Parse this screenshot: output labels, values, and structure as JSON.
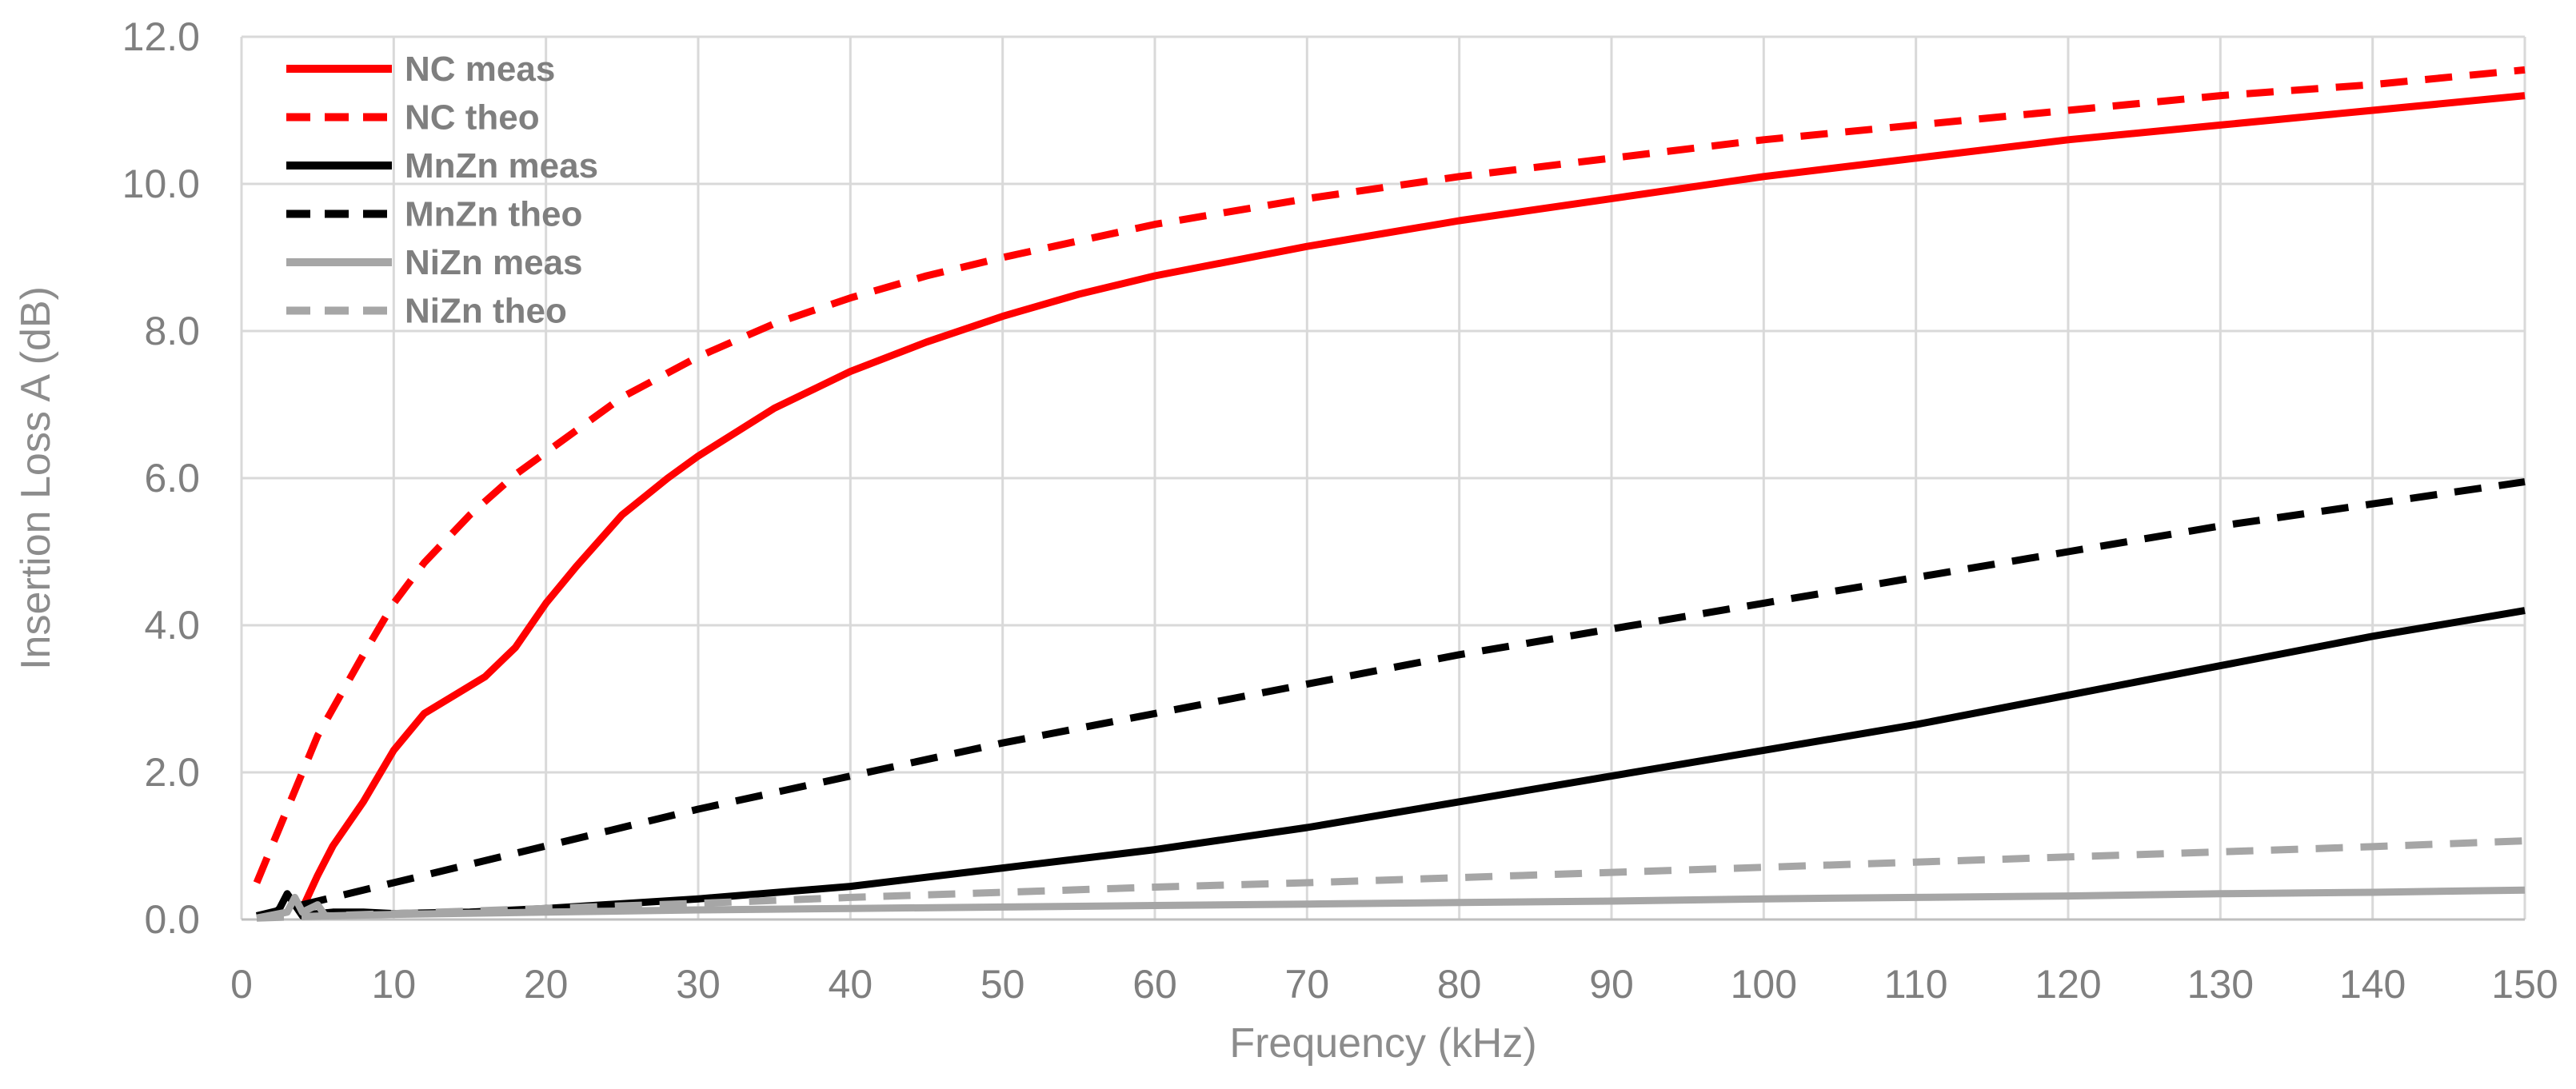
{
  "chart_data": {
    "type": "line",
    "title": "",
    "xlabel": "Frequency (kHz)",
    "ylabel": "Insertion Loss A (dB)",
    "xlim": [
      0,
      150
    ],
    "ylim": [
      0,
      12
    ],
    "grid": true,
    "legend_position": "top-left",
    "x_ticks": [
      0,
      10,
      20,
      30,
      40,
      50,
      60,
      70,
      80,
      90,
      100,
      110,
      120,
      130,
      140,
      150
    ],
    "x_tick_labels": [
      "0",
      "10",
      "20",
      "30",
      "40",
      "50",
      "60",
      "70",
      "80",
      "90",
      "100",
      "110",
      "120",
      "130",
      "140",
      "150"
    ],
    "y_ticks": [
      0,
      2,
      4,
      6,
      8,
      10,
      12
    ],
    "y_tick_labels": [
      "0.0",
      "2.0",
      "4.0",
      "6.0",
      "8.0",
      "10.0",
      "12.0"
    ],
    "series": [
      {
        "name": "NC meas",
        "color": "#ff0000",
        "dash": "solid",
        "x": [
          4,
          5,
          6,
          8,
          10,
          12,
          14,
          16,
          18,
          20,
          22,
          25,
          28,
          30,
          35,
          40,
          45,
          50,
          55,
          60,
          70,
          80,
          90,
          100,
          110,
          120,
          130,
          140,
          150
        ],
        "y": [
          0.15,
          0.6,
          1.0,
          1.6,
          2.3,
          2.8,
          3.05,
          3.3,
          3.7,
          4.3,
          4.8,
          5.5,
          6.0,
          6.3,
          6.95,
          7.45,
          7.85,
          8.2,
          8.5,
          8.75,
          9.15,
          9.5,
          9.8,
          10.1,
          10.35,
          10.6,
          10.8,
          11.0,
          11.2
        ]
      },
      {
        "name": "NC theo",
        "color": "#ff0000",
        "dash": "dashed",
        "x": [
          1,
          3,
          5,
          8,
          10,
          12,
          15,
          18,
          20,
          25,
          30,
          35,
          40,
          45,
          50,
          60,
          70,
          80,
          90,
          100,
          110,
          120,
          130,
          140,
          150
        ],
        "y": [
          0.5,
          1.5,
          2.5,
          3.6,
          4.3,
          4.85,
          5.5,
          6.05,
          6.35,
          7.1,
          7.65,
          8.1,
          8.45,
          8.75,
          9.0,
          9.45,
          9.8,
          10.1,
          10.35,
          10.6,
          10.8,
          11.0,
          11.2,
          11.35,
          11.55
        ]
      },
      {
        "name": "MnZn meas",
        "color": "#000000",
        "dash": "solid",
        "x": [
          1,
          2,
          2.5,
          3,
          3.5,
          4,
          5,
          6,
          8,
          10,
          15,
          20,
          30,
          40,
          50,
          60,
          70,
          80,
          90,
          100,
          110,
          120,
          130,
          140,
          150
        ],
        "y": [
          0.03,
          0.05,
          0.15,
          0.35,
          0.2,
          0.05,
          0.08,
          0.1,
          0.1,
          0.08,
          0.1,
          0.15,
          0.28,
          0.45,
          0.7,
          0.95,
          1.25,
          1.6,
          1.95,
          2.3,
          2.65,
          3.05,
          3.45,
          3.85,
          4.2
        ]
      },
      {
        "name": "MnZn theo",
        "color": "#000000",
        "dash": "dashed",
        "x": [
          1,
          5,
          10,
          20,
          30,
          40,
          50,
          60,
          70,
          80,
          90,
          100,
          110,
          120,
          130,
          140,
          150
        ],
        "y": [
          0.05,
          0.25,
          0.5,
          1.0,
          1.5,
          1.95,
          2.4,
          2.8,
          3.2,
          3.6,
          3.95,
          4.3,
          4.65,
          5.0,
          5.35,
          5.65,
          5.95
        ]
      },
      {
        "name": "NiZn meas",
        "color": "#a6a6a6",
        "dash": "solid",
        "x": [
          1,
          3,
          3.5,
          4,
          5,
          5.5,
          6,
          8,
          10,
          20,
          30,
          40,
          50,
          60,
          70,
          80,
          90,
          100,
          110,
          120,
          130,
          140,
          150
        ],
        "y": [
          0.02,
          0.1,
          0.3,
          0.1,
          0.2,
          0.05,
          0.05,
          0.06,
          0.07,
          0.1,
          0.13,
          0.15,
          0.17,
          0.19,
          0.21,
          0.23,
          0.25,
          0.28,
          0.3,
          0.32,
          0.35,
          0.37,
          0.4
        ]
      },
      {
        "name": "NiZn theo",
        "color": "#a6a6a6",
        "dash": "dashed",
        "x": [
          1,
          10,
          20,
          30,
          40,
          50,
          60,
          70,
          80,
          90,
          100,
          110,
          120,
          130,
          140,
          150
        ],
        "y": [
          0.02,
          0.08,
          0.15,
          0.22,
          0.3,
          0.37,
          0.44,
          0.5,
          0.57,
          0.64,
          0.71,
          0.78,
          0.85,
          0.92,
          0.99,
          1.07
        ]
      }
    ]
  }
}
